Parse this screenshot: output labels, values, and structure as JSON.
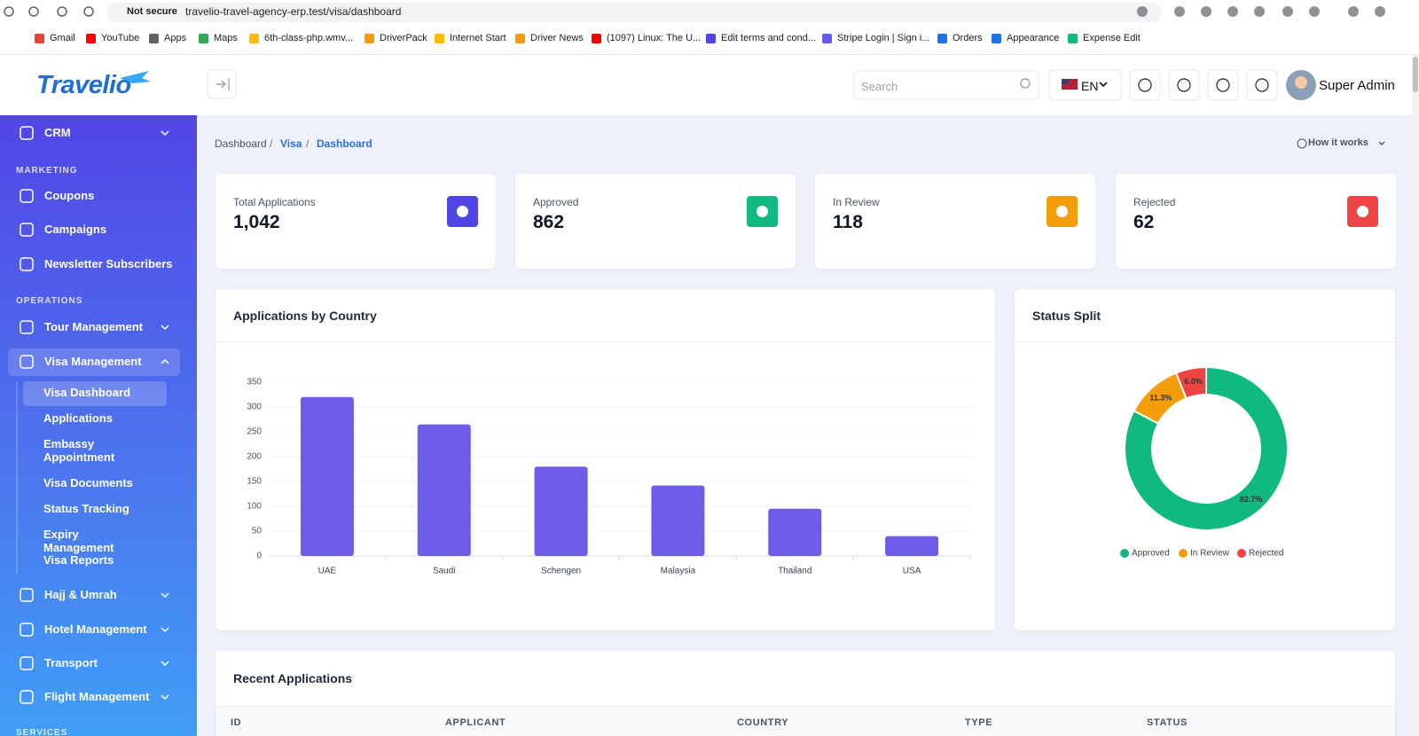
{
  "browser": {
    "security": "Not secure",
    "url": "travelio-travel-agency-erp.test/visa/dashboard",
    "bookmarks": [
      "Gmail",
      "YouTube",
      "Apps",
      "Maps",
      "6th-class-php.wmv...",
      "DriverPack",
      "Internet Start",
      "Driver News",
      "(1097) Linux: The U...",
      "Edit terms and cond...",
      "Stripe Login | Sign i...",
      "Orders",
      "Appearance",
      "Expense Edit"
    ]
  },
  "header": {
    "logo": "Travelio",
    "search_placeholder": "Search",
    "language": "EN",
    "user": "Super Admin"
  },
  "sidebar": {
    "top": [
      "CRM"
    ],
    "marketing": {
      "title": "MARKETING",
      "items": [
        "Coupons",
        "Campaigns",
        "Newsletter Subscribers"
      ]
    },
    "operations": {
      "title": "OPERATIONS",
      "items": [
        "Tour Management",
        "Visa Management",
        "Hajj & Umrah",
        "Hotel Management",
        "Transport",
        "Flight Management"
      ],
      "visa_submenu": [
        "Visa Dashboard",
        "Applications",
        "Embassy Appointment",
        "Visa Documents",
        "Status Tracking",
        "Expiry Management",
        "Visa Reports"
      ]
    },
    "services": {
      "title": "SERVICES"
    }
  },
  "breadcrumb": [
    "Dashboard",
    "Visa",
    "Dashboard"
  ],
  "help": "How it works",
  "stats": [
    {
      "label": "Total Applications",
      "value": "1,042"
    },
    {
      "label": "Approved",
      "value": "862"
    },
    {
      "label": "In Review",
      "value": "118"
    },
    {
      "label": "Rejected",
      "value": "62"
    }
  ],
  "chart_data": [
    {
      "type": "bar",
      "title": "Applications by Country",
      "categories": [
        "UAE",
        "Saudi",
        "Schengen",
        "Malaysia",
        "Thailand",
        "USA"
      ],
      "values": [
        320,
        265,
        180,
        142,
        95,
        40
      ],
      "color": "#6c5ce7",
      "ylim": [
        0,
        350
      ],
      "yticks": [
        0,
        50,
        100,
        150,
        200,
        250,
        300,
        350
      ],
      "grid": true
    },
    {
      "type": "pie",
      "title": "Status Split",
      "categories": [
        "Approved",
        "In Review",
        "Rejected"
      ],
      "values": [
        82.7,
        11.3,
        6.0
      ],
      "value_labels": [
        "82.7%",
        "11.3%",
        "6.0%"
      ],
      "colors": [
        "#10b981",
        "#f59e0b",
        "#ef4444"
      ],
      "donut": true,
      "legend": "bottom"
    }
  ],
  "table": {
    "title": "Recent Applications",
    "columns": [
      "ID",
      "APPLICANT",
      "COUNTRY",
      "TYPE",
      "STATUS"
    ]
  }
}
